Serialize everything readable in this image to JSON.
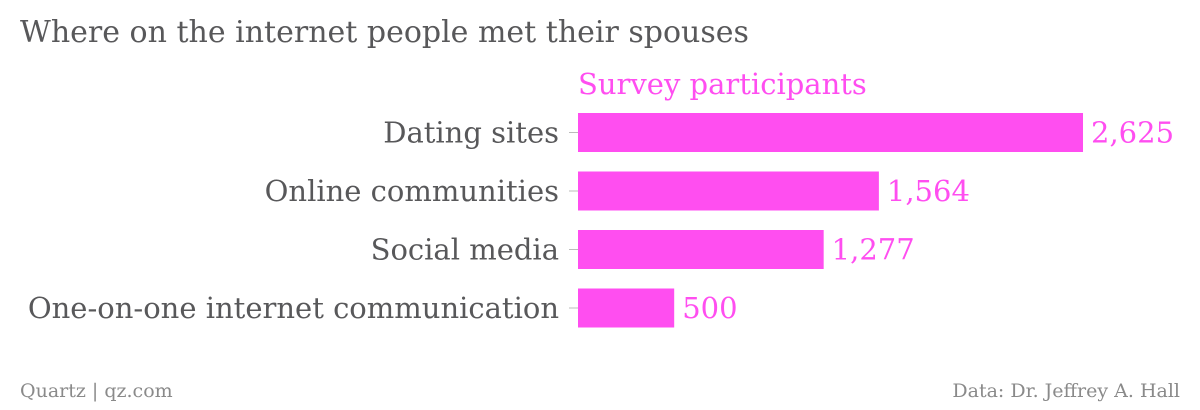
{
  "footer": {
    "left": "Quartz | qz.com",
    "right": "Data: Dr. Jeffrey A. Hall"
  },
  "colors": {
    "bar": "#ff4ef0",
    "text": "#58585a",
    "footer": "#8a8a8a",
    "tick": "#bbbbbb"
  },
  "chart_data": {
    "type": "bar",
    "orientation": "horizontal",
    "title": "Where on the internet people met their spouses",
    "series": [
      {
        "name": "Survey participants",
        "values": [
          2625,
          1564,
          1277,
          500
        ]
      }
    ],
    "categories": [
      "Dating sites",
      "Online communities",
      "Social media",
      "One-on-one internet communication"
    ],
    "value_labels": [
      "2,625",
      "1,564",
      "1,277",
      "500"
    ],
    "xlim": [
      0,
      2625
    ],
    "grid": false,
    "legend": "none"
  }
}
